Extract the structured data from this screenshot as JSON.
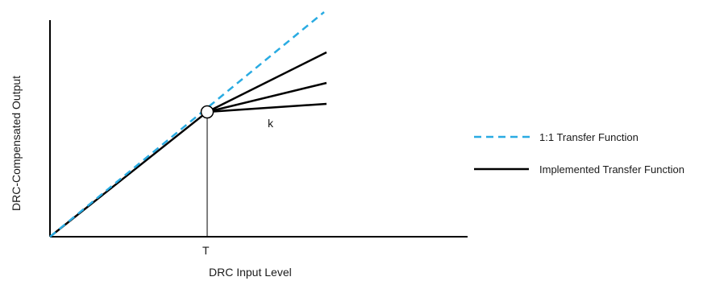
{
  "diagram": {
    "x_axis_label": "DRC Input Level",
    "y_axis_label": "DRC-Compensated Output",
    "threshold_label": "T",
    "ratio_label": "k",
    "legend": [
      {
        "label": "1:1 Transfer Function",
        "style": "dashed",
        "color": "#29abe2"
      },
      {
        "label": "Implemented Transfer Function",
        "style": "solid",
        "color": "#000000"
      }
    ]
  }
}
